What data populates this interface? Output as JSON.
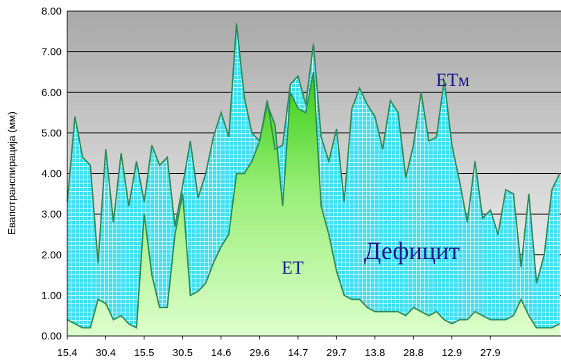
{
  "chart_data": {
    "type": "area",
    "y_label": "Евапотранспирација (мм)",
    "categories": [
      "15.4",
      null,
      null,
      null,
      null,
      "30.4",
      null,
      null,
      null,
      null,
      "15.5",
      null,
      null,
      null,
      null,
      "30.5",
      null,
      null,
      null,
      null,
      "14.6",
      null,
      null,
      null,
      null,
      "29.6",
      null,
      null,
      null,
      null,
      "14.7",
      null,
      null,
      null,
      null,
      "29.7",
      null,
      null,
      null,
      null,
      "13.8",
      null,
      null,
      null,
      null,
      "28.8",
      null,
      null,
      null,
      null,
      "12.9",
      null,
      null,
      null,
      null,
      "27.9",
      null,
      null,
      null,
      null,
      null,
      null,
      null,
      null,
      null
    ],
    "series": [
      {
        "name": "ETм",
        "color": "#3fe0f0",
        "values": [
          3.3,
          5.4,
          4.4,
          4.2,
          1.8,
          4.6,
          2.8,
          4.5,
          3.2,
          4.3,
          3.3,
          4.7,
          4.2,
          4.4,
          2.7,
          3.7,
          4.8,
          3.4,
          4.0,
          4.9,
          5.5,
          4.9,
          7.7,
          5.9,
          5.0,
          4.8,
          5.8,
          4.6,
          4.7,
          6.2,
          6.4,
          5.7,
          7.2,
          4.9,
          4.3,
          5.1,
          3.3,
          5.6,
          6.1,
          5.7,
          5.4,
          4.6,
          5.8,
          5.5,
          3.9,
          4.7,
          6.0,
          4.8,
          4.9,
          6.3,
          4.7,
          3.8,
          2.8,
          4.3,
          2.9,
          3.1,
          2.5,
          3.6,
          3.5,
          1.7,
          3.5,
          1.3,
          2.0,
          3.6,
          4.0
        ]
      },
      {
        "name": "ET",
        "color": "#55dd33",
        "values": [
          0.4,
          0.3,
          0.2,
          0.2,
          0.9,
          0.8,
          0.4,
          0.5,
          0.3,
          0.2,
          3.0,
          1.5,
          0.7,
          0.7,
          2.5,
          3.5,
          1.0,
          1.1,
          1.3,
          1.8,
          2.2,
          2.5,
          4.0,
          4.0,
          4.3,
          4.8,
          5.7,
          5.2,
          3.2,
          6.0,
          5.6,
          5.5,
          6.5,
          3.2,
          2.5,
          1.6,
          1.0,
          0.9,
          0.9,
          0.7,
          0.6,
          0.6,
          0.6,
          0.6,
          0.5,
          0.7,
          0.6,
          0.5,
          0.6,
          0.4,
          0.3,
          0.4,
          0.4,
          0.6,
          0.5,
          0.4,
          0.4,
          0.4,
          0.5,
          0.9,
          0.5,
          0.2,
          0.2,
          0.2,
          0.3
        ]
      }
    ],
    "annotations": [
      "Дефицит"
    ],
    "line_color": "#2e8b57",
    "ylim": [
      0,
      8
    ],
    "yticks": [
      {
        "value": 0,
        "label": "0.00"
      },
      {
        "value": 1,
        "label": "1.00"
      },
      {
        "value": 2,
        "label": "2.00"
      },
      {
        "value": 3,
        "label": "3.00"
      },
      {
        "value": 4,
        "label": "4.00"
      },
      {
        "value": 5,
        "label": "5.00"
      },
      {
        "value": 6,
        "label": "6.00"
      },
      {
        "value": 7,
        "label": "7.00"
      },
      {
        "value": 8,
        "label": "8.00"
      }
    ],
    "grid": true
  }
}
